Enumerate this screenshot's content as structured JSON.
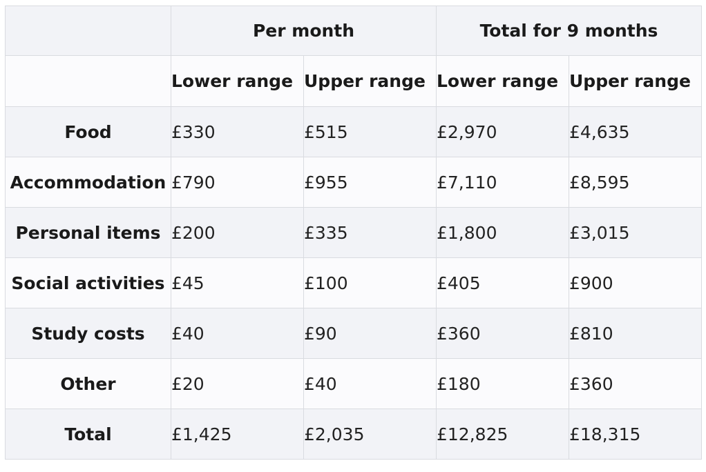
{
  "chart_data": {
    "type": "table",
    "group_headers": [
      "",
      "Per month",
      "Total for 9 months"
    ],
    "sub_headers": [
      "Lower range",
      "Upper range",
      "Lower range",
      "Upper range"
    ],
    "rows": [
      {
        "label": "Food",
        "values": [
          "£330",
          "£515",
          "£2,970",
          "£4,635"
        ]
      },
      {
        "label": "Accommodation",
        "values": [
          "£790",
          "£955",
          "£7,110",
          "£8,595"
        ]
      },
      {
        "label": "Personal items",
        "values": [
          "£200",
          "£335",
          "£1,800",
          "£3,015"
        ]
      },
      {
        "label": "Social activities",
        "values": [
          "£45",
          "£100",
          "£405",
          "£900"
        ]
      },
      {
        "label": "Study costs",
        "values": [
          "£40",
          "£90",
          "£360",
          "£810"
        ]
      },
      {
        "label": "Other",
        "values": [
          "£20",
          "£40",
          "£180",
          "£360"
        ]
      },
      {
        "label": "Total",
        "values": [
          "£1,425",
          "£2,035",
          "£12,825",
          "£18,315"
        ]
      }
    ]
  },
  "colors": {
    "header_bg": "#f2f3f7",
    "row_alt_bg": "#fbfbfd",
    "border": "#d9dbe0",
    "text": "#1a1a1a"
  }
}
